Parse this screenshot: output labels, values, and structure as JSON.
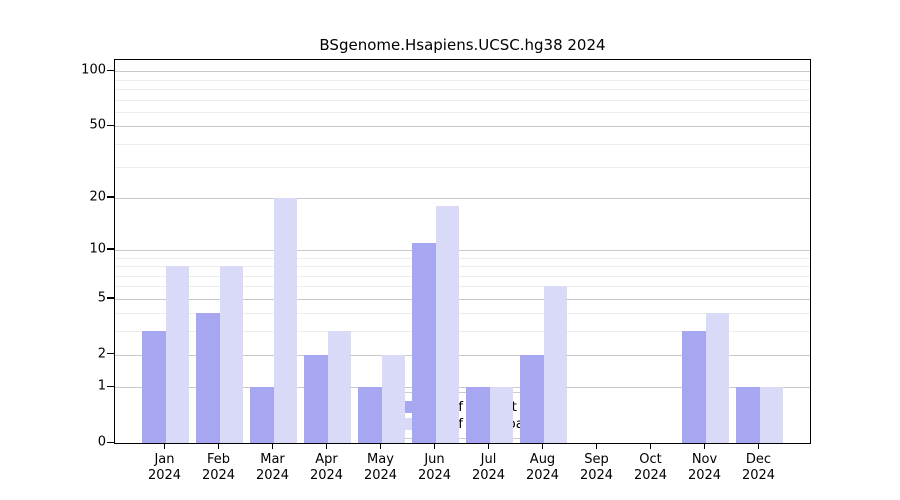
{
  "chart_data": {
    "type": "bar",
    "title": "BSgenome.Hsapiens.UCSC.hg38 2024",
    "categories": [
      "Jan",
      "Feb",
      "Mar",
      "Apr",
      "May",
      "Jun",
      "Jul",
      "Aug",
      "Sep",
      "Oct",
      "Nov",
      "Dec"
    ],
    "year_label": "2024",
    "series": [
      {
        "name": "Nb of distinct IPs",
        "color": "#a6a6f1",
        "values": [
          3,
          4,
          1,
          2,
          1,
          11,
          1,
          2,
          0,
          0,
          3,
          1
        ]
      },
      {
        "name": "Nb of downloads",
        "color": "#d9d9f8",
        "values": [
          8,
          8,
          20,
          3,
          2,
          18,
          1,
          6,
          0,
          0,
          4,
          1
        ]
      }
    ],
    "y_axis": {
      "scale": "log1p",
      "ticks": [
        0,
        1,
        2,
        5,
        10,
        20,
        50,
        100
      ],
      "minor_ticks": [
        3,
        4,
        6,
        7,
        8,
        9,
        30,
        40,
        60,
        70,
        80,
        90
      ],
      "range": [
        0,
        110
      ]
    },
    "grid": true,
    "legend_position": "bottom-center"
  }
}
